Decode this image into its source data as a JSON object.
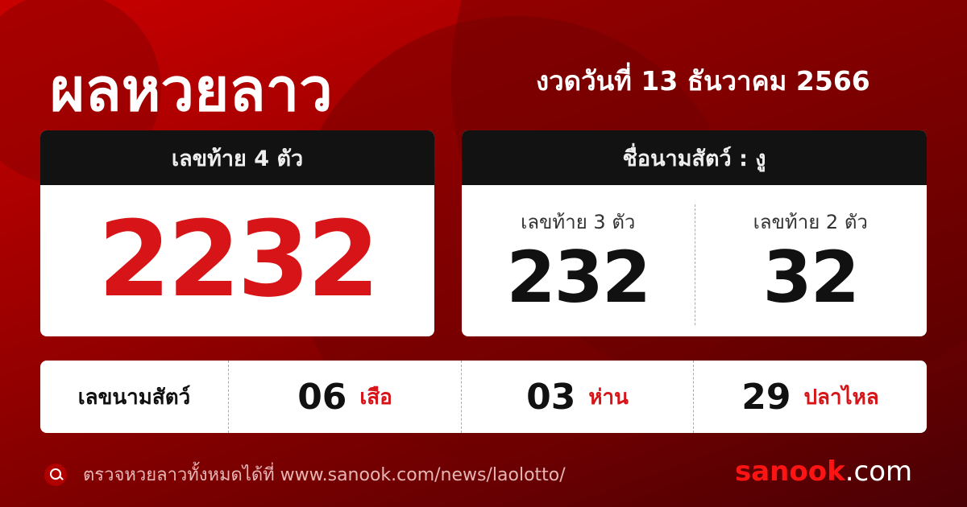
{
  "title": "ผลหวยลาว",
  "draw_date": "งวดวันที่ 13 ธันวาคม 2566",
  "last4": {
    "label": "เลขท้าย 4 ตัว",
    "value": "2232"
  },
  "animal_card": {
    "label": "ชื่อนามสัตว์ : งู",
    "last3_label": "เลขท้าย 3 ตัว",
    "last3": "232",
    "last2_label": "เลขท้าย 2 ตัว",
    "last2": "32"
  },
  "animal_numbers": {
    "label": "เลขนามสัตว์",
    "items": [
      {
        "num": "06",
        "animal": "เสือ"
      },
      {
        "num": "03",
        "animal": "ห่าน"
      },
      {
        "num": "29",
        "animal": "ปลาไหล"
      }
    ]
  },
  "footer": {
    "text": "ตรวจหวยลาวทั้งหมดได้ที่ www.sanook.com/news/laolotto/",
    "logo_main": "sanook",
    "logo_suffix": ".com",
    "icon": "search-icon"
  },
  "colors": {
    "accent": "#d71418",
    "header": "#121212"
  }
}
